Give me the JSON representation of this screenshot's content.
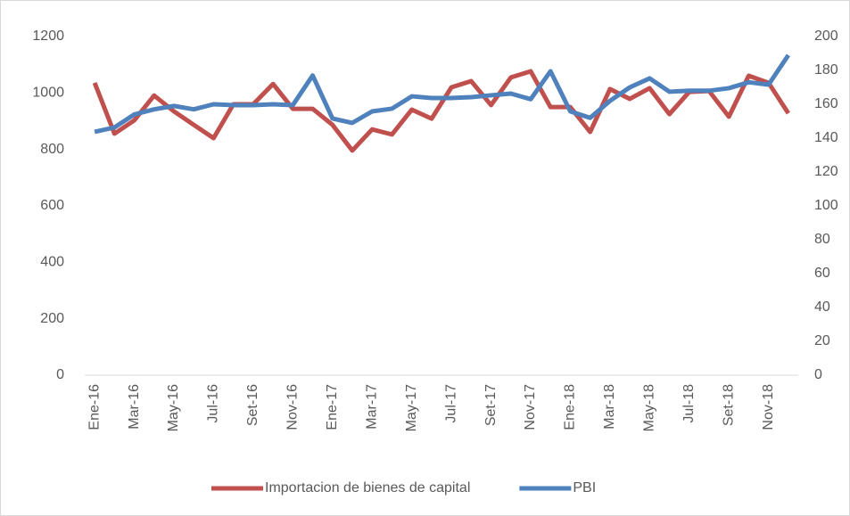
{
  "chart_data": {
    "type": "line",
    "categories": [
      "Ene-16",
      null,
      "Mar-16",
      null,
      "May-16",
      null,
      "Jul-16",
      null,
      "Set-16",
      null,
      "Nov-16",
      null,
      "Ene-17",
      null,
      "Mar-17",
      null,
      "May-17",
      null,
      "Jul-17",
      null,
      "Set-17",
      null,
      "Nov-17",
      null,
      "Ene-18",
      null,
      "Mar-18",
      null,
      "May-18",
      null,
      "Jul-18",
      null,
      "Set-18",
      null,
      "Nov-18",
      null
    ],
    "series": [
      {
        "name": "Importacion de bienes de capital",
        "color": "#c0504d",
        "values": [
          1036,
          856,
          903,
          991,
          935,
          887,
          840,
          960,
          960,
          1032,
          944,
          944,
          887,
          796,
          871,
          853,
          941,
          909,
          1020,
          1042,
          957,
          1055,
          1077,
          950,
          950,
          862,
          1014,
          979,
          1017,
          925,
          1004,
          1007,
          916,
          1061,
          1036,
          928
        ]
      },
      {
        "name": "PBI",
        "color": "#4f81bd",
        "axis": "y2",
        "values": [
          143.7,
          146.3,
          154,
          157,
          159,
          157,
          160,
          159.5,
          159.5,
          160,
          159.5,
          177,
          151.6,
          149,
          155.8,
          157.4,
          164.7,
          163.7,
          163.7,
          164.2,
          165.3,
          166.3,
          163,
          179.5,
          155.8,
          152,
          162,
          170,
          175.3,
          167.4,
          168,
          168,
          169.5,
          173,
          171.6,
          189
        ]
      }
    ],
    "ylim": [
      0,
      1200
    ],
    "yticks": [
      0,
      200,
      400,
      600,
      800,
      1000,
      1200
    ],
    "y2lim": [
      0,
      200
    ],
    "y2ticks": [
      0,
      20,
      40,
      60,
      80,
      100,
      120,
      140,
      160,
      180,
      200
    ],
    "grid": false,
    "legend": "bottom"
  }
}
